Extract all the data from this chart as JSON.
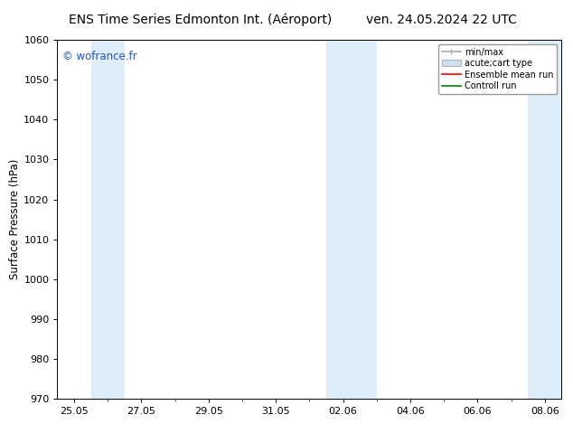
{
  "title_left": "ENS Time Series Edmonton Int. (Aéroport)",
  "title_right": "ven. 24.05.2024 22 UTC",
  "ylabel": "Surface Pressure (hPa)",
  "ylim": [
    970,
    1060
  ],
  "yticks": [
    970,
    980,
    990,
    1000,
    1010,
    1020,
    1030,
    1040,
    1050,
    1060
  ],
  "xtick_labels": [
    "25.05",
    "27.05",
    "29.05",
    "31.05",
    "02.06",
    "04.06",
    "06.06",
    "08.06"
  ],
  "xtick_positions": [
    0,
    2,
    4,
    6,
    8,
    10,
    12,
    14
  ],
  "xlim": [
    -0.5,
    14.5
  ],
  "background_color": "#ffffff",
  "plot_bg_color": "#ffffff",
  "watermark": "© wofrance.fr",
  "watermark_color": "#2255cc",
  "legend_entries": [
    {
      "label": "min/max",
      "color": "#aaaaaa",
      "lw": 1.2,
      "type": "errorbar"
    },
    {
      "label": "acute;cart type",
      "color": "#cce0f0",
      "lw": 6,
      "type": "band"
    },
    {
      "label": "Ensemble mean run",
      "color": "#ff0000",
      "lw": 1.2,
      "type": "line"
    },
    {
      "label": "Controll run",
      "color": "#008000",
      "lw": 1.2,
      "type": "line"
    }
  ],
  "shaded_bands": [
    {
      "x_start": 0.5,
      "x_end": 1.5,
      "color": "#ddeef8"
    },
    {
      "x_start": 7.5,
      "x_end": 9.0,
      "color": "#ddeef8"
    },
    {
      "x_start": 13.5,
      "x_end": 14.5,
      "color": "#ddeef8"
    }
  ],
  "title_fontsize": 10,
  "tick_fontsize": 8,
  "ylabel_fontsize": 8.5,
  "watermark_fontsize": 8.5,
  "legend_fontsize": 7
}
